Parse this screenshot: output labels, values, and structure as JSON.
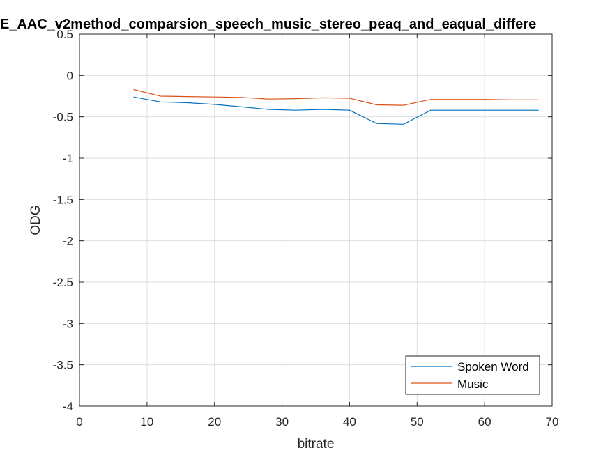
{
  "chart_data": {
    "type": "line",
    "title": "E_AAC_v2method_comparsion_speech_music_stereo_peaq_and_eaqual_differe",
    "xlabel": "bitrate",
    "ylabel": "ODG",
    "xlim": [
      0,
      70
    ],
    "ylim": [
      -4,
      0.5
    ],
    "xticks": [
      0,
      10,
      20,
      30,
      40,
      50,
      60,
      70
    ],
    "yticks": [
      0.5,
      0,
      -0.5,
      -1,
      -1.5,
      -2,
      -2.5,
      -3,
      -3.5,
      -4
    ],
    "xtick_labels": [
      "0",
      "10",
      "20",
      "30",
      "40",
      "50",
      "60",
      "70"
    ],
    "ytick_labels": [
      "0.5",
      "0",
      "-0.5",
      "-1",
      "-1.5",
      "-2",
      "-2.5",
      "-3",
      "-3.5",
      "-4"
    ],
    "grid": true,
    "legend_position": "bottom-right",
    "x": [
      8,
      12,
      16,
      20,
      24,
      28,
      32,
      36,
      40,
      44,
      48,
      52,
      56,
      60,
      64,
      68
    ],
    "series": [
      {
        "name": "Spoken Word",
        "color": "#0072BD",
        "values": [
          -0.26,
          -0.32,
          -0.33,
          -0.35,
          -0.38,
          -0.41,
          -0.42,
          -0.41,
          -0.42,
          -0.58,
          -0.59,
          -0.42,
          -0.42,
          -0.42,
          -0.42,
          -0.42
        ]
      },
      {
        "name": "Music",
        "color": "#D95319",
        "values": [
          -0.17,
          -0.25,
          -0.255,
          -0.26,
          -0.265,
          -0.285,
          -0.28,
          -0.27,
          -0.275,
          -0.355,
          -0.36,
          -0.29,
          -0.29,
          -0.29,
          -0.295,
          -0.295
        ]
      }
    ]
  }
}
